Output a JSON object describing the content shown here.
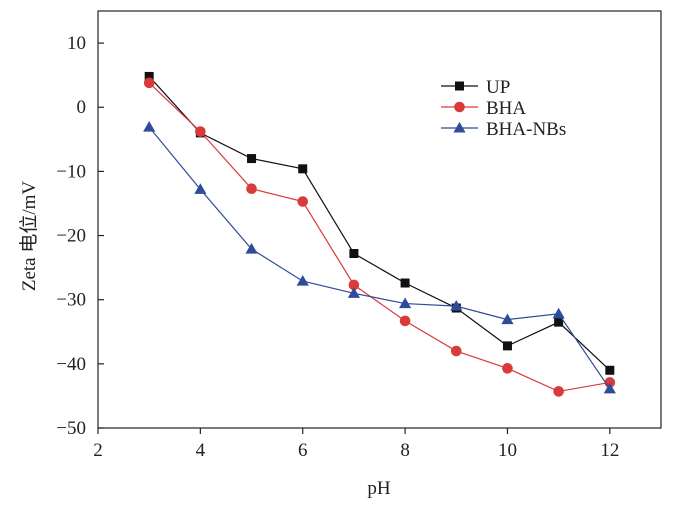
{
  "chart_data": {
    "type": "line",
    "title": "",
    "xlabel": "pH",
    "ylabel": "Zeta 电位/mV",
    "xlim": [
      2,
      13
    ],
    "ylim": [
      -50,
      15
    ],
    "x_ticks": [
      2,
      4,
      6,
      8,
      10,
      12
    ],
    "y_ticks": [
      10,
      0,
      -10,
      -20,
      -30,
      -40,
      -50
    ],
    "x_tick_labels": [
      "2",
      "4",
      "6",
      "8",
      "10",
      "12"
    ],
    "y_tick_labels": [
      "10",
      "0",
      "−10",
      "−20",
      "−30",
      "−40",
      "−50"
    ],
    "grid": false,
    "legend_position": "top-right",
    "series": [
      {
        "name": "UP",
        "color": "#111111",
        "marker": "square",
        "x": [
          3,
          4,
          5,
          6,
          7,
          8,
          9,
          10,
          11,
          12
        ],
        "values": [
          4.8,
          -4,
          -8,
          -9.6,
          -22.8,
          -27.4,
          -31.3,
          -37.2,
          -33.5,
          -41
        ]
      },
      {
        "name": "BHA",
        "color": "#d93a3a",
        "marker": "circle",
        "x": [
          3,
          4,
          5,
          6,
          7,
          8,
          9,
          10,
          11,
          12
        ],
        "values": [
          3.8,
          -3.8,
          -12.7,
          -14.7,
          -27.7,
          -33.3,
          -38,
          -40.7,
          -44.3,
          -42.9
        ]
      },
      {
        "name": "BHA-NBs",
        "color": "#2f4b9a",
        "marker": "triangle",
        "x": [
          3,
          4,
          5,
          6,
          7,
          8,
          9,
          10,
          11,
          12
        ],
        "values": [
          -3.1,
          -12.8,
          -22.1,
          -27.1,
          -29,
          -30.6,
          -31,
          -33.1,
          -32.2,
          -43.9
        ]
      }
    ]
  }
}
